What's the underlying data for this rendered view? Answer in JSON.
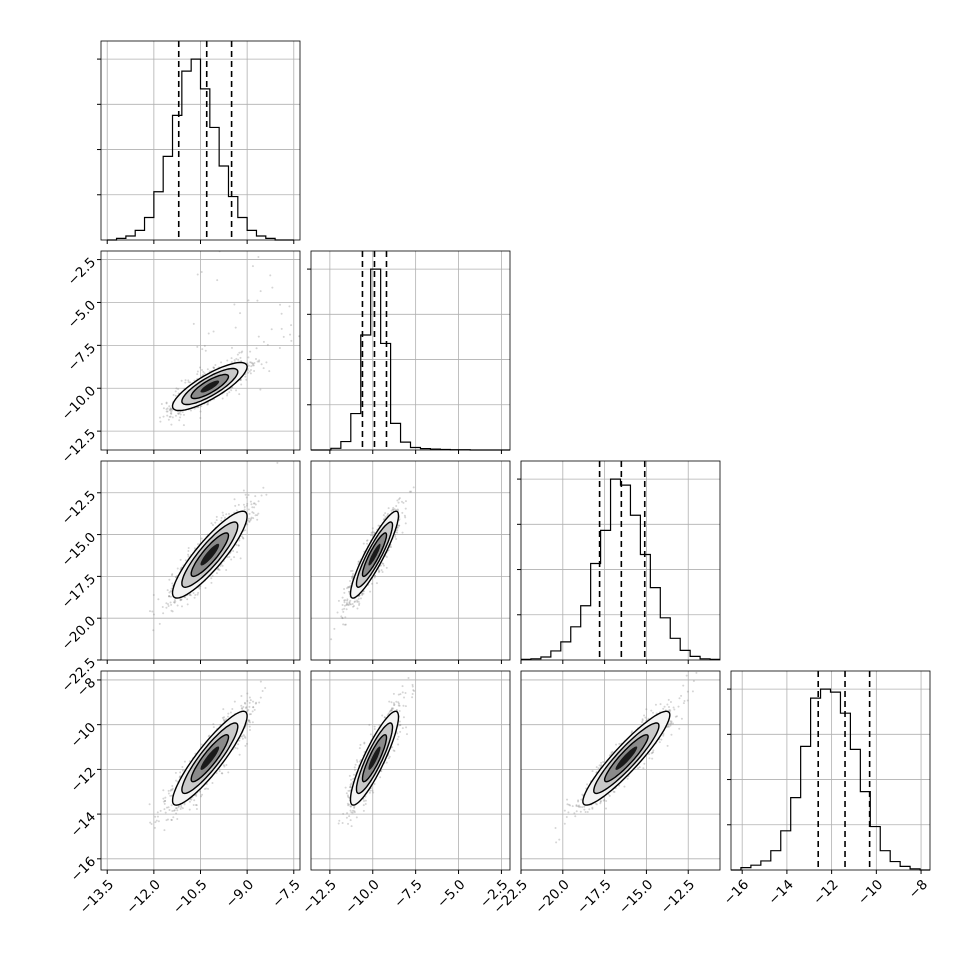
{
  "chart_data": {
    "type": "corner",
    "description_free": true,
    "parameters": 4,
    "grid": true,
    "colors": {
      "mark": "#000000",
      "grid": "#b0b0b0",
      "background": "#ffffff"
    },
    "x_ticks": [
      {
        "values": [
          -13.5,
          -12.0,
          -10.5,
          -9.0,
          -7.5
        ],
        "labels": [
          "−13.5",
          "−12.0",
          "−10.5",
          "−9.0",
          "−7.5"
        ],
        "range": [
          -13.7,
          -7.3
        ]
      },
      {
        "values": [
          -12.5,
          -10.0,
          -7.5,
          -5.0,
          -2.5
        ],
        "labels": [
          "−12.5",
          "−10.0",
          "−7.5",
          "−5.0",
          "−2.5"
        ],
        "range": [
          -13.6,
          -2.0
        ]
      },
      {
        "values": [
          -22.5,
          -20.0,
          -17.5,
          -15.0,
          -12.5
        ],
        "labels": [
          "−22.5",
          "−20.0",
          "−17.5",
          "−15.0",
          "−12.5"
        ],
        "range": [
          -22.5,
          -10.6
        ]
      },
      {
        "values": [
          -16,
          -14,
          -12,
          -10,
          -8
        ],
        "labels": [
          "−16",
          "−14",
          "−12",
          "−10",
          "−8"
        ],
        "range": [
          -16.5,
          -7.6
        ]
      }
    ],
    "y_ticks": [
      null,
      {
        "values": [
          -2.5,
          -5.0,
          -7.5,
          -10.0,
          -12.5
        ],
        "labels": [
          "−2.5",
          "−5.0",
          "−7.5",
          "−10.0",
          "−12.5"
        ],
        "range": [
          -13.6,
          -2.0
        ]
      },
      {
        "values": [
          -12.5,
          -15.0,
          -17.5,
          -20.0,
          -22.5
        ],
        "labels": [
          "−12.5",
          "−15.0",
          "−17.5",
          "−20.0",
          "−22.5"
        ],
        "range": [
          -22.5,
          -10.6
        ]
      },
      {
        "values": [
          -8,
          -10,
          -12,
          -14,
          -16
        ],
        "labels": [
          "−8",
          "−10",
          "−12",
          "−14",
          "−16"
        ],
        "range": [
          -16.5,
          -7.6
        ]
      }
    ],
    "histograms": [
      {
        "bin_edges": [
          -13.5,
          -13.2,
          -12.9,
          -12.6,
          -12.3,
          -12.0,
          -11.7,
          -11.4,
          -11.1,
          -10.8,
          -10.5,
          -10.2,
          -9.9,
          -9.6,
          -9.3,
          -9.0,
          -8.7,
          -8.4,
          -8.1,
          -7.8,
          -7.5
        ],
        "counts": [
          0,
          2,
          5,
          12,
          28,
          60,
          104,
          155,
          210,
          225,
          188,
          140,
          92,
          54,
          28,
          12,
          5,
          2,
          0,
          0
        ],
        "quantiles": [
          -11.2,
          -10.3,
          -9.5
        ]
      },
      {
        "bin_edges": [
          -13.6,
          -13.02,
          -12.44,
          -11.86,
          -11.28,
          -10.7,
          -10.12,
          -9.54,
          -8.96,
          -8.38,
          -7.8,
          -7.22,
          -6.64,
          -6.06,
          -5.48,
          -4.9,
          -4.32,
          -3.74,
          -3.16,
          -2.58,
          -2.0
        ],
        "counts": [
          0,
          0,
          6,
          30,
          130,
          410,
          645,
          380,
          95,
          28,
          9,
          5,
          3,
          2,
          1,
          1,
          0,
          0,
          0,
          0
        ],
        "quantiles": [
          -10.6,
          -9.9,
          -9.2
        ]
      },
      {
        "bin_edges": [
          -22.5,
          -21.905,
          -21.31,
          -20.715,
          -20.12,
          -19.525,
          -18.93,
          -18.335,
          -17.74,
          -17.145,
          -16.55,
          -15.955,
          -15.36,
          -14.765,
          -14.17,
          -13.575,
          -12.98,
          -12.385,
          -11.79,
          -11.195,
          -10.6
        ],
        "counts": [
          1,
          2,
          5,
          15,
          30,
          55,
          90,
          160,
          215,
          300,
          290,
          240,
          175,
          120,
          70,
          36,
          16,
          6,
          2,
          1
        ],
        "quantiles": [
          -17.8,
          -16.5,
          -15.1
        ]
      },
      {
        "bin_edges": [
          -16.5,
          -16.055,
          -15.61,
          -15.165,
          -14.72,
          -14.275,
          -13.83,
          -13.385,
          -12.94,
          -12.495,
          -12.05,
          -11.605,
          -11.16,
          -10.715,
          -10.27,
          -9.825,
          -9.38,
          -8.935,
          -8.49,
          -8.045,
          -7.6
        ],
        "counts": [
          0,
          4,
          8,
          15,
          32,
          65,
          120,
          205,
          285,
          300,
          295,
          260,
          200,
          130,
          72,
          32,
          14,
          6,
          2,
          0
        ],
        "quantiles": [
          -12.6,
          -11.4,
          -10.3
        ]
      }
    ],
    "pairs": [
      {
        "row": 1,
        "col": 0,
        "center": [
          -10.2,
          -9.9
        ],
        "sigma": [
          0.6,
          0.7
        ],
        "rho": 0.82,
        "outlier_tail": [
          2.0,
          4.0
        ]
      },
      {
        "row": 2,
        "col": 0,
        "center": [
          -10.2,
          -16.2
        ],
        "sigma": [
          0.6,
          1.3
        ],
        "rho": 0.88
      },
      {
        "row": 2,
        "col": 1,
        "center": [
          -9.9,
          -16.2
        ],
        "sigma": [
          0.7,
          1.3
        ],
        "rho": 0.9
      },
      {
        "row": 3,
        "col": 0,
        "center": [
          -10.2,
          -11.5
        ],
        "sigma": [
          0.6,
          1.05
        ],
        "rho": 0.9
      },
      {
        "row": 3,
        "col": 1,
        "center": [
          -9.9,
          -11.5
        ],
        "sigma": [
          0.7,
          1.05
        ],
        "rho": 0.88
      },
      {
        "row": 3,
        "col": 2,
        "center": [
          -16.2,
          -11.5
        ],
        "sigma": [
          1.3,
          1.05
        ],
        "rho": 0.92
      }
    ],
    "contour_levels_sigma": [
      0.5,
      1.0,
      1.5,
      2.0
    ]
  }
}
